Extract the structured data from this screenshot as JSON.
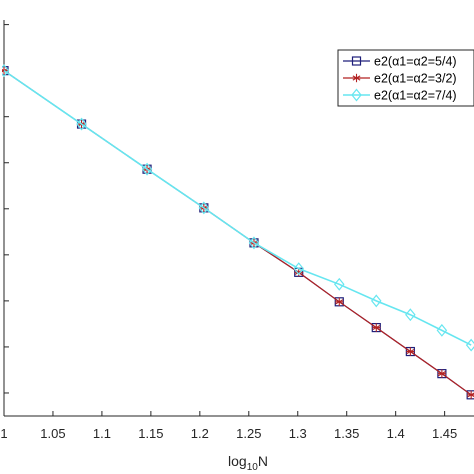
{
  "chart_data": {
    "type": "line",
    "xlabel": "log₁₀N",
    "xlabel_main": "log",
    "xlabel_sub": "10",
    "xlabel_tail": "N",
    "xlim": [
      1.0,
      1.48
    ],
    "ylim": [
      -3.75,
      0.55
    ],
    "x_ticks": [
      1,
      1.05,
      1.1,
      1.15,
      1.2,
      1.25,
      1.3,
      1.35,
      1.4,
      1.45
    ],
    "x_tick_labels": [
      "1",
      "1.05",
      "1.1",
      "1.15",
      "1.2",
      "1.25",
      "1.3",
      "1.35",
      "1.4",
      "1.45"
    ],
    "y_ticks": [
      0.5,
      0,
      -0.5,
      -1,
      -1.5,
      -2,
      -2.5,
      -3,
      -3.5
    ],
    "grid": false,
    "legend_position": "top-right",
    "colors": {
      "s1": "#1f1f7a",
      "s2": "#b22222",
      "s3": "#66e6f0"
    },
    "series": [
      {
        "name": "e2(α1=α2=5/4)",
        "marker": "square",
        "x": [
          1.0,
          1.0792,
          1.1461,
          1.2041,
          1.2553,
          1.301,
          1.3424,
          1.3802,
          1.415,
          1.4472,
          1.4771
        ],
        "y": [
          0.0,
          -0.58,
          -1.07,
          -1.49,
          -1.87,
          -2.19,
          -2.51,
          -2.79,
          -3.05,
          -3.29,
          -3.52
        ]
      },
      {
        "name": "e2(α1=α2=3/2)",
        "marker": "asterisk",
        "x": [
          1.0,
          1.0792,
          1.1461,
          1.2041,
          1.2553,
          1.301,
          1.3424,
          1.3802,
          1.415,
          1.4472,
          1.4771
        ],
        "y": [
          0.0,
          -0.58,
          -1.07,
          -1.49,
          -1.87,
          -2.19,
          -2.51,
          -2.79,
          -3.05,
          -3.29,
          -3.52
        ]
      },
      {
        "name": "e2(α1=α2=7/4)",
        "marker": "diamond",
        "x": [
          1.0,
          1.0792,
          1.1461,
          1.2041,
          1.2553,
          1.301,
          1.3424,
          1.3802,
          1.415,
          1.4472,
          1.4771
        ],
        "y": [
          0.0,
          -0.58,
          -1.07,
          -1.49,
          -1.87,
          -2.15,
          -2.32,
          -2.5,
          -2.65,
          -2.82,
          -2.98
        ]
      }
    ]
  }
}
